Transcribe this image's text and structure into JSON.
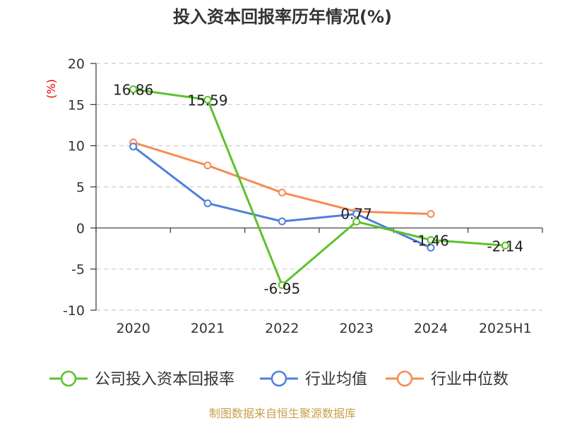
{
  "title": "投入资本回报率历年情况(%)",
  "source": "制图数据来自恒生聚源数据库",
  "chart_data": {
    "type": "line",
    "title": "投入资本回报率历年情况(%)",
    "ylabel": "(%)",
    "categories": [
      "2020",
      "2021",
      "2022",
      "2023",
      "2024",
      "2025H1"
    ],
    "ylim": [
      -10,
      20
    ],
    "yticks": [
      20,
      15,
      10,
      5,
      0,
      -5,
      -10
    ],
    "grid": true,
    "legend_position": "bottom",
    "series": [
      {
        "name": "公司投入资本回报率",
        "color": "#5cc22a",
        "values": [
          16.86,
          15.59,
          -6.95,
          0.77,
          -1.46,
          -2.14
        ],
        "labels": [
          "16.86",
          "15.59",
          "-6.95",
          "0.77",
          "-1.46",
          "-2.14"
        ]
      },
      {
        "name": "行业均值",
        "color": "#4f7fdc",
        "values": [
          9.9,
          3.0,
          0.8,
          1.7,
          -2.4,
          null
        ]
      },
      {
        "name": "行业中位数",
        "color": "#f58b54",
        "values": [
          10.4,
          7.6,
          4.3,
          2.0,
          1.7,
          null
        ]
      }
    ]
  }
}
